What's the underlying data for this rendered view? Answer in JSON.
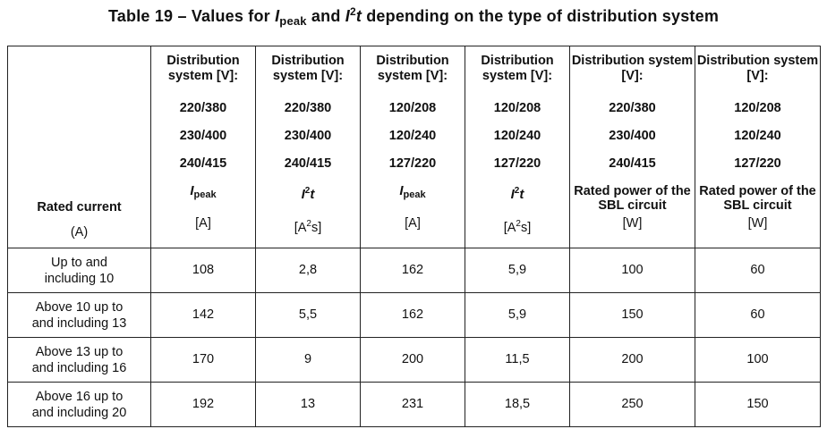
{
  "title": {
    "prefix": "Table 19 – Values for ",
    "i1": "I",
    "i1_sub": "peak",
    "mid": " and ",
    "i2": "I",
    "i2_sup": "2",
    "i2_t": "t",
    "suffix": " depending on the type of distribution system"
  },
  "header": {
    "rated_current_label": "Rated current",
    "rated_current_unit": "(A)",
    "columns": [
      {
        "system": "Distribution system [V]:",
        "volts": [
          "220/380",
          "230/400",
          "240/415"
        ],
        "qty_main": "I",
        "qty_sub": "peak",
        "qty_sup": "",
        "qty_t": "",
        "unit": "[A]",
        "unit_sup": "",
        "unit_tail": ""
      },
      {
        "system": "Distribution system [V]:",
        "volts": [
          "220/380",
          "230/400",
          "240/415"
        ],
        "qty_main": "I",
        "qty_sub": "",
        "qty_sup": "2",
        "qty_t": "t",
        "unit": "[A",
        "unit_sup": "2",
        "unit_tail": "s]"
      },
      {
        "system": "Distribution system [V]:",
        "volts": [
          "120/208",
          "120/240",
          "127/220"
        ],
        "qty_main": "I",
        "qty_sub": "peak",
        "qty_sup": "",
        "qty_t": "",
        "unit": "[A]",
        "unit_sup": "",
        "unit_tail": ""
      },
      {
        "system": "Distribution system [V]:",
        "volts": [
          "120/208",
          "120/240",
          "127/220"
        ],
        "qty_main": "I",
        "qty_sub": "",
        "qty_sup": "2",
        "qty_t": "t",
        "unit": "[A",
        "unit_sup": "2",
        "unit_tail": "s]"
      },
      {
        "system": "Distribution system [V]:",
        "volts": [
          "220/380",
          "230/400",
          "240/415"
        ],
        "qty_text": "Rated power of the SBL circuit",
        "unit": "[W]",
        "unit_sup": "",
        "unit_tail": ""
      },
      {
        "system": "Distribution system [V]:",
        "volts": [
          "120/208",
          "120/240",
          "127/220"
        ],
        "qty_text": "Rated power of the SBL circuit",
        "unit": "[W]",
        "unit_sup": "",
        "unit_tail": ""
      }
    ]
  },
  "rows": [
    {
      "rc_line1": "Up to and",
      "rc_line2": "including 10",
      "values": [
        "108",
        "2,8",
        "162",
        "5,9",
        "100",
        "60"
      ]
    },
    {
      "rc_line1": "Above 10 up to",
      "rc_line2": "and including 13",
      "values": [
        "142",
        "5,5",
        "162",
        "5,9",
        "150",
        "60"
      ]
    },
    {
      "rc_line1": "Above 13 up to",
      "rc_line2": "and including 16",
      "values": [
        "170",
        "9",
        "200",
        "11,5",
        "200",
        "100"
      ]
    },
    {
      "rc_line1": "Above 16 up to",
      "rc_line2": "and including 20",
      "values": [
        "192",
        "13",
        "231",
        "18,5",
        "250",
        "150"
      ]
    }
  ]
}
